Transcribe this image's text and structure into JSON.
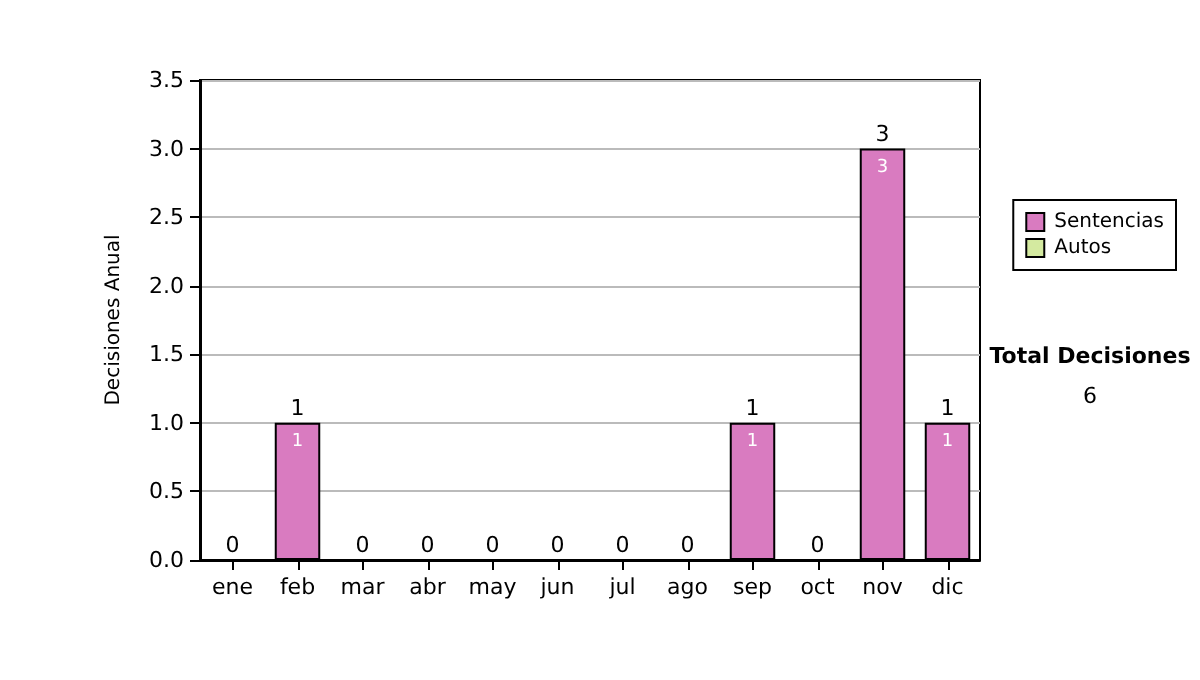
{
  "chart_data": {
    "type": "bar",
    "stacked": true,
    "ylabel": "Decisiones Anual",
    "categories": [
      "ene",
      "feb",
      "mar",
      "abr",
      "may",
      "jun",
      "jul",
      "ago",
      "sep",
      "oct",
      "nov",
      "dic"
    ],
    "series": [
      {
        "name": "Sentencias",
        "color": "#d97bc0",
        "values": [
          0,
          1,
          0,
          0,
          0,
          0,
          0,
          0,
          1,
          0,
          3,
          1
        ],
        "value_labels": [
          null,
          "1",
          null,
          null,
          null,
          null,
          null,
          null,
          "1",
          null,
          "3",
          "1"
        ]
      },
      {
        "name": "Autos",
        "color": "#d4eaa0",
        "values": [
          0,
          0,
          0,
          0,
          0,
          0,
          0,
          0,
          0,
          0,
          0,
          0
        ]
      }
    ],
    "totals": [
      "0",
      "1",
      "0",
      "0",
      "0",
      "0",
      "0",
      "0",
      "1",
      "0",
      "3",
      "1"
    ],
    "ylim": [
      0,
      3.5
    ],
    "yticks": [
      {
        "value": 0,
        "label": "0.0"
      },
      {
        "value": 0.5,
        "label": "0.5"
      },
      {
        "value": 1,
        "label": "1.0"
      },
      {
        "value": 1.5,
        "label": "1.5"
      },
      {
        "value": 2,
        "label": "2.0"
      },
      {
        "value": 2.5,
        "label": "2.5"
      },
      {
        "value": 3,
        "label": "3.0"
      },
      {
        "value": 3.5,
        "label": "3.5"
      }
    ],
    "grid": "y",
    "legend": "right",
    "annotations": [
      "Total Decisiones",
      "6"
    ]
  }
}
